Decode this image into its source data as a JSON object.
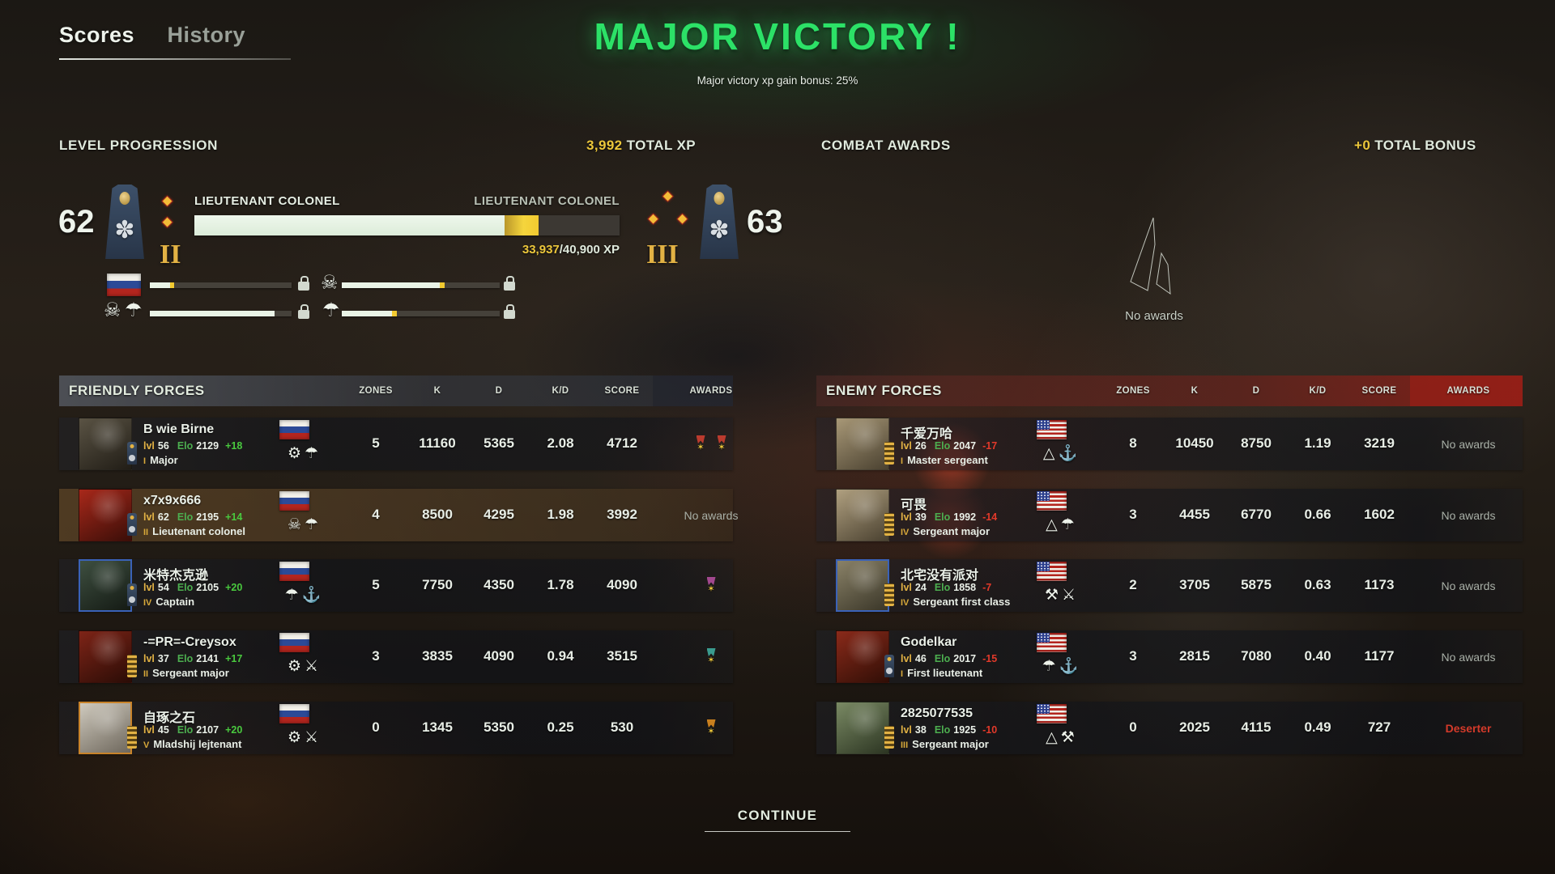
{
  "tabs": {
    "scores": "Scores",
    "history": "History"
  },
  "victory": {
    "title": "MAJOR VICTORY !",
    "subtitle": "Major victory xp gain bonus: 25%"
  },
  "level_progression": {
    "heading": "LEVEL PROGRESSION",
    "total_xp_value": "3,992",
    "total_xp_label": " TOTAL XP",
    "current_level": "62",
    "next_level": "63",
    "current_rank": "LIEUTENANT COLONEL",
    "next_rank": "LIEUTENANT COLONEL",
    "current_prestige": "II",
    "next_prestige": "III",
    "xp_current": "33,937",
    "xp_required": "/40,900 XP",
    "main_bar": {
      "fill_pct": 73,
      "gain_pct": 8
    },
    "mini_bars": [
      {
        "icons": [
          "flag-ru"
        ],
        "fill_pct": 14,
        "gain_pct": 3,
        "locked": true
      },
      {
        "icons": [
          "commando"
        ],
        "fill_pct": 62,
        "gain_pct": 3,
        "locked": true
      },
      {
        "icons": [
          "commando",
          "paratrooper"
        ],
        "fill_pct": 88,
        "gain_pct": 0,
        "locked": true
      },
      {
        "icons": [
          "paratrooper"
        ],
        "fill_pct": 32,
        "gain_pct": 3,
        "locked": true
      }
    ]
  },
  "combat_awards": {
    "heading": "COMBAT AWARDS",
    "bonus_value": "+0",
    "bonus_label": " TOTAL BONUS",
    "empty_text": "No awards"
  },
  "emblem_glyphs": {
    "armor": "⚙",
    "paratrooper": "☂",
    "commando": "☠",
    "anchor": "⚓",
    "marines": "⚓",
    "division": "△",
    "crossed-weapons": "⚔",
    "artillery": "⚒"
  },
  "accent_colors": {
    "xp_yellow": "#ecc73b",
    "victory_green": "#2ce167",
    "gain_green": "#49c93e",
    "loss_red": "#e2392a"
  },
  "tables": {
    "headers": {
      "zones": "ZONES",
      "k": "K",
      "d": "D",
      "kd": "K/D",
      "score": "SCORE",
      "awards": "AWARDS"
    },
    "friendly": {
      "title": "FRIENDLY FORCES",
      "rows": [
        {
          "name": "B wie Birne",
          "insignia": "officer",
          "lvl_label": "lvl",
          "lvl": "56",
          "elo_label": "Elo",
          "elo": "2129",
          "delta": "+18",
          "prestige": "I",
          "rank": "Major",
          "flag": "ru",
          "emblems": [
            "armor",
            "paratrooper"
          ],
          "zones": "5",
          "k": "11160",
          "d": "5365",
          "kd": "2.08",
          "score": "4712",
          "awards": {
            "medals": [
              "#bb3b2e",
              "#bb3b2e"
            ]
          },
          "avatar": [
            "#5a5344",
            "#211d16"
          ],
          "avatar_border": ""
        },
        {
          "name": "x7x9x666",
          "insignia": "officer",
          "lvl_label": "lvl",
          "lvl": "62",
          "elo_label": "Elo",
          "elo": "2195",
          "delta": "+14",
          "prestige": "II",
          "rank": "Lieutenant colonel",
          "flag": "ru",
          "emblems": [
            "commando",
            "paratrooper"
          ],
          "zones": "4",
          "k": "8500",
          "d": "4295",
          "kd": "1.98",
          "score": "3992",
          "awards": {
            "text": "No awards"
          },
          "avatar": [
            "#a8281a",
            "#3a0e08"
          ],
          "avatar_border": "",
          "highlight": true
        },
        {
          "name": "米特杰克逊",
          "insignia": "officer",
          "lvl_label": "lvl",
          "lvl": "54",
          "elo_label": "Elo",
          "elo": "2105",
          "delta": "+20",
          "prestige": "IV",
          "rank": "Captain",
          "flag": "ru",
          "emblems": [
            "paratrooper",
            "anchor"
          ],
          "zones": "5",
          "k": "7750",
          "d": "4350",
          "kd": "1.78",
          "score": "4090",
          "awards": {
            "medals": [
              "#a3488f"
            ]
          },
          "avatar": [
            "#3e4f40",
            "#141a14"
          ],
          "avatar_border": "#3a62b8"
        },
        {
          "name": "-=PR=-Creysox",
          "insignia": "nco",
          "lvl_label": "lvl",
          "lvl": "37",
          "elo_label": "Elo",
          "elo": "2141",
          "delta": "+17",
          "prestige": "II",
          "rank": "Sergeant major",
          "flag": "ru",
          "emblems": [
            "armor",
            "crossed-weapons"
          ],
          "zones": "3",
          "k": "3835",
          "d": "4090",
          "kd": "0.94",
          "score": "3515",
          "awards": {
            "medals": [
              "#3a9b8f"
            ]
          },
          "avatar": [
            "#7e2417",
            "#2a0c06"
          ],
          "avatar_border": ""
        },
        {
          "name": "自琢之石",
          "insignia": "nco",
          "lvl_label": "lvl",
          "lvl": "45",
          "elo_label": "Elo",
          "elo": "2107",
          "delta": "+20",
          "prestige": "V",
          "rank": "Mladshij lejtenant",
          "flag": "ru",
          "emblems": [
            "armor",
            "crossed-weapons"
          ],
          "zones": "0",
          "k": "1345",
          "d": "5350",
          "kd": "0.25",
          "score": "530",
          "awards": {
            "medals": [
              "#c87f1e"
            ]
          },
          "avatar": [
            "#cfcabe",
            "#6e675c"
          ],
          "avatar_border": "#c8832a"
        }
      ]
    },
    "enemy": {
      "title": "ENEMY FORCES",
      "rows": [
        {
          "name": "千爱万哈",
          "insignia": "nco",
          "lvl_label": "lvl",
          "lvl": "26",
          "elo_label": "Elo",
          "elo": "2047",
          "delta": "-17",
          "prestige": "I",
          "rank": "Master sergeant",
          "flag": "us",
          "emblems": [
            "division",
            "marines"
          ],
          "zones": "8",
          "k": "10450",
          "d": "8750",
          "kd": "1.19",
          "score": "3219",
          "awards": {
            "text": "No awards"
          },
          "avatar": [
            "#a89877",
            "#4a4130"
          ],
          "avatar_border": ""
        },
        {
          "name": "可畏",
          "insignia": "nco",
          "lvl_label": "lvl",
          "lvl": "39",
          "elo_label": "Elo",
          "elo": "1992",
          "delta": "-14",
          "prestige": "IV",
          "rank": "Sergeant major",
          "flag": "us",
          "emblems": [
            "division",
            "paratrooper"
          ],
          "zones": "3",
          "k": "4455",
          "d": "6770",
          "kd": "0.66",
          "score": "1602",
          "awards": {
            "text": "No awards"
          },
          "avatar": [
            "#b0a080",
            "#4a4130"
          ],
          "avatar_border": ""
        },
        {
          "name": "北宅没有派对",
          "insignia": "nco",
          "lvl_label": "lvl",
          "lvl": "24",
          "elo_label": "Elo",
          "elo": "1858",
          "delta": "-7",
          "prestige": "IV",
          "rank": "Sergeant first class",
          "flag": "us",
          "emblems": [
            "artillery",
            "crossed-weapons"
          ],
          "zones": "2",
          "k": "3705",
          "d": "5875",
          "kd": "0.63",
          "score": "1173",
          "awards": {
            "text": "No awards"
          },
          "avatar": [
            "#8a8268",
            "#3a3628"
          ],
          "avatar_border": "#3a62b8"
        },
        {
          "name": "Godelkar",
          "insignia": "officer",
          "lvl_label": "lvl",
          "lvl": "46",
          "elo_label": "Elo",
          "elo": "2017",
          "delta": "-15",
          "prestige": "I",
          "rank": "First lieutenant",
          "flag": "us",
          "emblems": [
            "paratrooper",
            "marines"
          ],
          "zones": "3",
          "k": "2815",
          "d": "7080",
          "kd": "0.40",
          "score": "1177",
          "awards": {
            "text": "No awards"
          },
          "avatar": [
            "#8a2a1a",
            "#300e06"
          ],
          "avatar_border": ""
        },
        {
          "name": "2825077535",
          "insignia": "nco",
          "lvl_label": "lvl",
          "lvl": "38",
          "elo_label": "Elo",
          "elo": "1925",
          "delta": "-10",
          "prestige": "III",
          "rank": "Sergeant major",
          "flag": "us",
          "emblems": [
            "division",
            "artillery"
          ],
          "zones": "0",
          "k": "2025",
          "d": "4115",
          "kd": "0.49",
          "score": "727",
          "awards": {
            "text": "Deserter",
            "deserter": true
          },
          "avatar": [
            "#7a8a64",
            "#2c3522"
          ],
          "avatar_border": ""
        }
      ]
    }
  },
  "continue_label": "CONTINUE"
}
